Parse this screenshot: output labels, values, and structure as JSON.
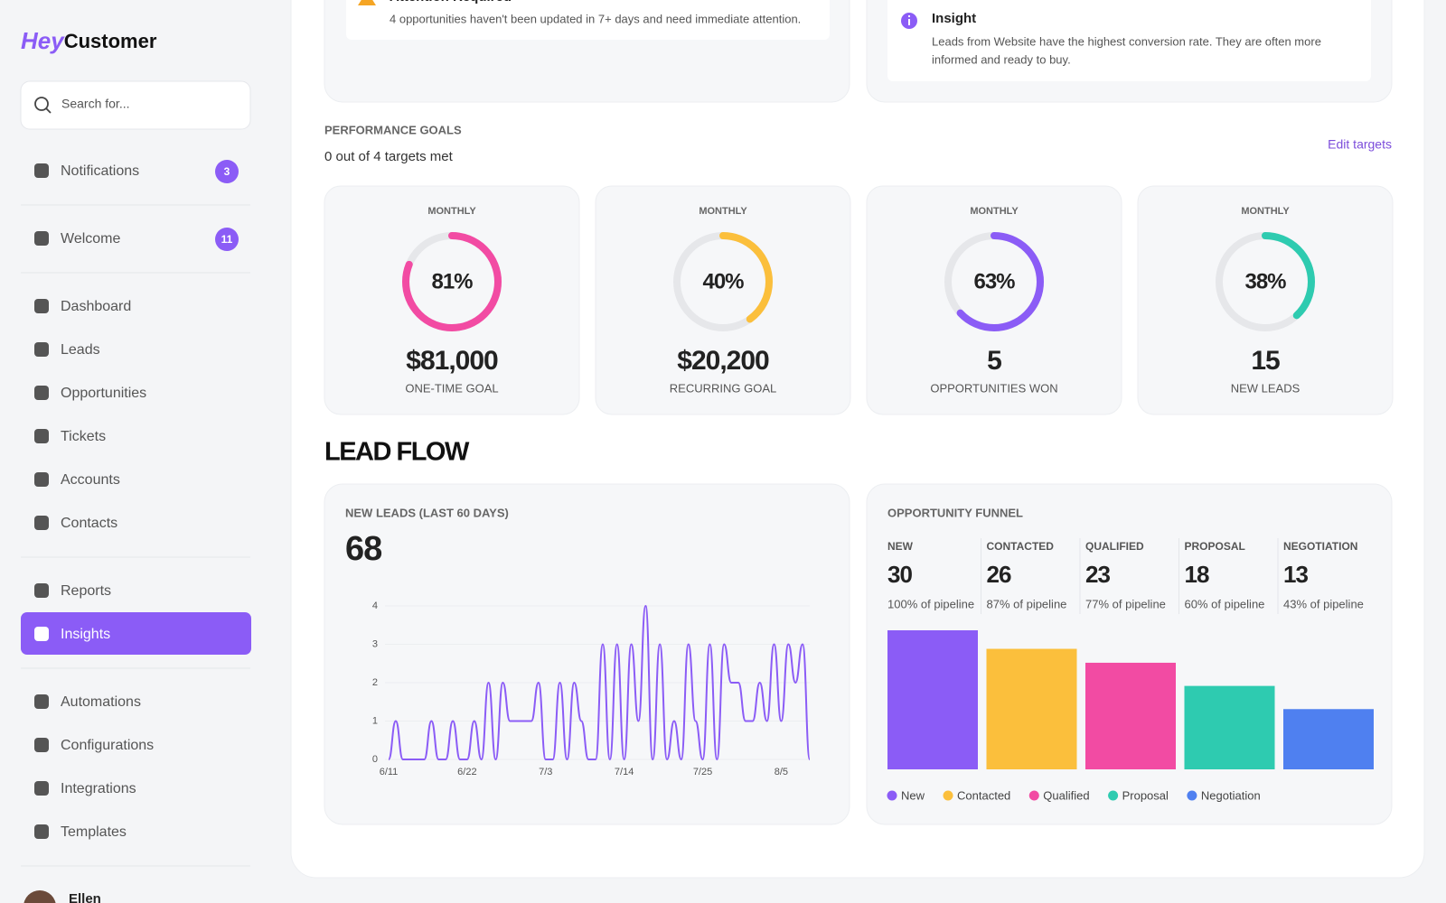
{
  "sidebar": {
    "logo": [
      "Hey",
      "Customer"
    ],
    "search_placeholder": "Search for...",
    "nav_groups": [
      [
        {
          "label": "Notifications",
          "badge": 3
        }
      ],
      [
        {
          "label": "Welcome",
          "badge": 11
        }
      ],
      [
        {
          "label": "Dashboard"
        },
        {
          "label": "Leads"
        },
        {
          "label": "Opportunities"
        },
        {
          "label": "Tickets"
        },
        {
          "label": "Accounts"
        },
        {
          "label": "Contacts"
        }
      ],
      [
        {
          "label": "Reports"
        },
        {
          "label": "Insights",
          "active": true
        }
      ],
      [
        {
          "label": "Automations"
        },
        {
          "label": "Configurations"
        },
        {
          "label": "Integrations"
        },
        {
          "label": "Templates"
        }
      ]
    ],
    "user": "Ellen"
  },
  "alerts": {
    "attention": {
      "title": "Attention Required",
      "text": "4 opportunities haven't been updated in 7+ days and need immediate attention."
    },
    "insight": {
      "title": "Insight",
      "text": [
        "Leads from Website have the highest conversion rate. They are often more",
        "informed and ready to buy."
      ]
    }
  },
  "goals": {
    "heading": "PERFORMANCE GOALS",
    "summary": "0 out of 4 targets met",
    "edit": "Edit targets",
    "cards": [
      {
        "period": "MONTHLY",
        "percent": 81,
        "percent_label": "81%",
        "value": "$81,000",
        "label": "ONE-TIME GOAL",
        "color": "#f24ba3"
      },
      {
        "period": "MONTHLY",
        "percent": 40,
        "percent_label": "40%",
        "value": "$20,200",
        "label": "RECURRING GOAL",
        "color": "#fbbf3c"
      },
      {
        "period": "MONTHLY",
        "percent": 63,
        "percent_label": "63%",
        "value": "5",
        "label": "OPPORTUNITIES WON",
        "color": "#8b5cf6"
      },
      {
        "period": "MONTHLY",
        "percent": 38,
        "percent_label": "38%",
        "value": "15",
        "label": "NEW LEADS",
        "color": "#2ecbb0"
      }
    ]
  },
  "section_title": "LEAD FLOW",
  "chart_data": [
    {
      "type": "line",
      "title": "NEW LEADS (LAST 60 DAYS)",
      "total": 68,
      "color": "#8b5cf6",
      "categories": [
        "6/11",
        null,
        null,
        null,
        null,
        null,
        null,
        null,
        null,
        null,
        null,
        "6/22",
        null,
        null,
        null,
        null,
        null,
        null,
        null,
        null,
        null,
        null,
        "7/3",
        null,
        null,
        null,
        null,
        null,
        null,
        null,
        null,
        null,
        null,
        "7/14",
        null,
        null,
        null,
        null,
        null,
        null,
        null,
        null,
        null,
        null,
        "7/25",
        null,
        null,
        null,
        null,
        null,
        null,
        null,
        null,
        null,
        null,
        "8/5",
        null,
        null,
        null,
        null
      ],
      "values": [
        0,
        1,
        0,
        0,
        0,
        0,
        1,
        0,
        0,
        1,
        0,
        0,
        1,
        0,
        2,
        0,
        2,
        1,
        1,
        1,
        1,
        2,
        0,
        0,
        2,
        0,
        2,
        1,
        0,
        0,
        3,
        0,
        3,
        0,
        3,
        1,
        4,
        0,
        3,
        0,
        1,
        0,
        3,
        1,
        0,
        3,
        0,
        3,
        2,
        2,
        1,
        1,
        2,
        1,
        3,
        1,
        3,
        2,
        3,
        0
      ],
      "ylim": [
        0,
        4
      ],
      "yticks": [
        0,
        1,
        2,
        3,
        4
      ],
      "grid": true
    },
    {
      "type": "bar",
      "title": "OPPORTUNITY FUNNEL",
      "categories": [
        "NEW",
        "CONTACTED",
        "QUALIFIED",
        "PROPOSAL",
        "NEGOTIATION"
      ],
      "values": [
        30,
        26,
        23,
        18,
        13
      ],
      "value_notes": [
        "100% of pipeline",
        "87% of pipeline",
        "77% of pipeline",
        "60% of pipeline",
        "43% of pipeline"
      ],
      "legend": [
        "New",
        "Contacted",
        "Qualified",
        "Proposal",
        "Negotiation"
      ],
      "colors": [
        "#8b5cf6",
        "#fbbf3c",
        "#f24ba3",
        "#2ecbb0",
        "#4f80f0"
      ]
    }
  ]
}
